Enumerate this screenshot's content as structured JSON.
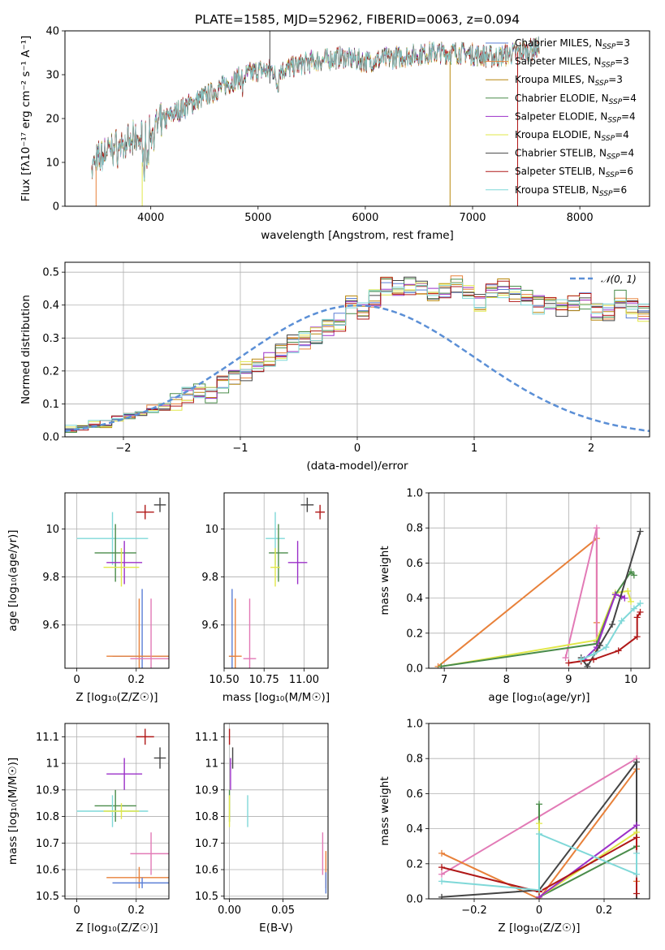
{
  "colors": {
    "chabrier_miles": "#5b7fd6",
    "salpeter_miles": "#e8813a",
    "kroupa_miles": "#b8860b",
    "chabrier_elodie": "#4a8c4a",
    "salpeter_elodie": "#9b30c8",
    "kroupa_elodie": "#e1e74a",
    "chabrier_stelib": "#444444",
    "salpeter_stelib": "#b01818",
    "kroupa_stelib": "#7fd8d8",
    "pink": "#e27ab6",
    "normal": "#5b8fd6"
  },
  "chart_data": [
    {
      "id": "spectrum",
      "type": "line",
      "title": "PLATE=1585, MJD=52962, FIBERID=0063, z=0.094",
      "xlabel": "wavelength [Angstrom, rest frame]",
      "ylabel": "Flux [fλ10⁻¹⁷ erg cm⁻² s⁻¹ A⁻¹]",
      "xlim": [
        3200,
        8650
      ],
      "ylim": [
        0,
        40
      ],
      "xticks": [
        4000,
        5000,
        6000,
        7000,
        8000
      ],
      "yticks": [
        0,
        10,
        20,
        30,
        40
      ],
      "legend_position": "top-right",
      "envelope": {
        "x": [
          3450,
          3600,
          3800,
          4000,
          4200,
          4500,
          4800,
          5000,
          5200,
          5500,
          5800,
          6000,
          6300,
          6600,
          6900,
          7200,
          7400,
          7600
        ],
        "y": [
          9,
          13,
          14,
          17,
          21,
          25,
          29,
          31,
          31,
          33,
          34,
          33,
          34,
          35,
          35,
          34,
          35,
          36
        ]
      },
      "legend": [
        "Chabrier MILES, N_SSP=3",
        "Salpeter MILES, N_SSP=3",
        "Kroupa MILES, N_SSP=3",
        "Chabrier ELODIE, N_SSP=4",
        "Salpeter ELODIE, N_SSP=4",
        "Kroupa ELODIE, N_SSP=4",
        "Chabrier STELIB, N_SSP=4",
        "Salpeter STELIB, N_SSP=6",
        "Kroupa STELIB, N_SSP=6"
      ],
      "legend_text": [
        [
          "Chabrier MILES, N",
          "SSP",
          "=3"
        ],
        [
          "Salpeter MILES, N",
          "SSP",
          "=3"
        ],
        [
          "Kroupa MILES, N",
          "SSP",
          "=3"
        ],
        [
          "Chabrier ELODIE, N",
          "SSP",
          "=4"
        ],
        [
          "Salpeter ELODIE, N",
          "SSP",
          "=4"
        ],
        [
          "Kroupa ELODIE, N",
          "SSP",
          "=4"
        ],
        [
          "Chabrier STELIB, N",
          "SSP",
          "=4"
        ],
        [
          "Salpeter STELIB, N",
          "SSP",
          "=6"
        ],
        [
          "Kroupa STELIB, N",
          "SSP",
          "=6"
        ]
      ],
      "series_colors": [
        "chabrier_miles",
        "salpeter_miles",
        "kroupa_miles",
        "chabrier_elodie",
        "salpeter_elodie",
        "kroupa_elodie",
        "chabrier_stelib",
        "salpeter_stelib",
        "kroupa_stelib"
      ],
      "vertical_lines": [
        {
          "x": 3490,
          "y0": 0,
          "y1": 9,
          "color": "salpeter_miles"
        },
        {
          "x": 3920,
          "y0": 0,
          "y1": 10,
          "color": "kroupa_elodie"
        },
        {
          "x": 5110,
          "y0": 28,
          "y1": 40,
          "color": "chabrier_stelib"
        },
        {
          "x": 6790,
          "y0": 0,
          "y1": 33,
          "color": "kroupa_miles"
        },
        {
          "x": 7420,
          "y0": 0,
          "y1": 35,
          "color": "salpeter_stelib"
        }
      ]
    },
    {
      "id": "residuals",
      "type": "histogram",
      "xlabel": "(data-model)/error",
      "ylabel": "Normed distribution",
      "xlim": [
        -2.5,
        2.5
      ],
      "ylim": [
        0,
        0.53
      ],
      "xticks": [
        -2,
        -1,
        0,
        1,
        2
      ],
      "yticks": [
        0.0,
        0.1,
        0.2,
        0.3,
        0.4,
        0.5
      ],
      "legend": "𝒩(0, 1)",
      "legend_position": "top-right",
      "bin_width": 0.1,
      "bin_start": -2.5,
      "base_profile": [
        0.025,
        0.03,
        0.04,
        0.04,
        0.055,
        0.06,
        0.065,
        0.085,
        0.09,
        0.11,
        0.13,
        0.14,
        0.13,
        0.155,
        0.175,
        0.2,
        0.225,
        0.24,
        0.26,
        0.28,
        0.29,
        0.31,
        0.33,
        0.35,
        0.4,
        0.38,
        0.42,
        0.46,
        0.45,
        0.46,
        0.45,
        0.43,
        0.44,
        0.46,
        0.45,
        0.41,
        0.44,
        0.45,
        0.43,
        0.42,
        0.4,
        0.4,
        0.39,
        0.4,
        0.41,
        0.38,
        0.38,
        0.42,
        0.39,
        0.38,
        0.36,
        0.39,
        0.37,
        0.36,
        0.33,
        0.3,
        0.31,
        0.29,
        0.26,
        0.26,
        0.22,
        0.2,
        0.2,
        0.19,
        0.16,
        0.14,
        0.15,
        0.13,
        0.1,
        0.1,
        0.08,
        0.08,
        0.07,
        0.06,
        0.05,
        0.04,
        0.04,
        0.035,
        0.03,
        0.03
      ],
      "normal_curve": {
        "mean": 0,
        "sigma": 1
      }
    },
    {
      "id": "age_vs_Z",
      "type": "errorbar",
      "xlabel": "Z [log₁₀(Z/Z☉)]",
      "ylabel": "age  [log₁₀(age/yr)]",
      "xlim": [
        -0.04,
        0.31
      ],
      "ylim": [
        9.42,
        10.15
      ],
      "xticks": [
        0.0,
        0.2
      ],
      "yticks": [
        9.6,
        9.8,
        10.0
      ],
      "points": [
        {
          "x": 0.28,
          "y": 10.1,
          "xerr": 0.02,
          "yerr": 0.03,
          "color": "chabrier_stelib"
        },
        {
          "x": 0.23,
          "y": 10.07,
          "xerr": 0.03,
          "yerr": 0.03,
          "color": "salpeter_stelib"
        },
        {
          "x": 0.12,
          "y": 9.96,
          "xerr": 0.12,
          "yerr": 0.11,
          "color": "kroupa_stelib"
        },
        {
          "x": 0.13,
          "y": 9.9,
          "xerr": 0.07,
          "yerr": 0.12,
          "color": "chabrier_elodie"
        },
        {
          "x": 0.16,
          "y": 9.86,
          "xerr": 0.06,
          "yerr": 0.09,
          "color": "salpeter_elodie"
        },
        {
          "x": 0.15,
          "y": 9.84,
          "xerr": 0.06,
          "yerr": 0.08,
          "color": "kroupa_elodie"
        },
        {
          "x": 0.22,
          "y": 9.47,
          "xerr": 0.1,
          "yerr": 0.28,
          "color": "chabrier_miles"
        },
        {
          "x": 0.21,
          "y": 9.47,
          "xerr": 0.11,
          "yerr": 0.24,
          "color": "salpeter_miles"
        },
        {
          "x": 0.25,
          "y": 9.46,
          "xerr": 0.07,
          "yerr": 0.25,
          "color": "pink"
        }
      ]
    },
    {
      "id": "age_vs_mass",
      "type": "errorbar",
      "xlabel": "mass [log₁₀(M/M☉)]",
      "ylabel": "",
      "xlim": [
        10.5,
        11.15
      ],
      "ylim": [
        9.42,
        10.15
      ],
      "xticks": [
        10.5,
        10.75,
        11.0
      ],
      "xticklabels": [
        "10.50",
        "10.75",
        "11.00"
      ],
      "yticks": [
        9.6,
        9.8,
        10.0
      ],
      "points": [
        {
          "x": 11.02,
          "y": 10.1,
          "xerr": 0.04,
          "yerr": 0.03,
          "color": "chabrier_stelib"
        },
        {
          "x": 11.1,
          "y": 10.07,
          "xerr": 0.03,
          "yerr": 0.03,
          "color": "salpeter_stelib"
        },
        {
          "x": 10.82,
          "y": 9.96,
          "xerr": 0.06,
          "yerr": 0.11,
          "color": "kroupa_stelib"
        },
        {
          "x": 10.84,
          "y": 9.9,
          "xerr": 0.06,
          "yerr": 0.12,
          "color": "chabrier_elodie"
        },
        {
          "x": 10.96,
          "y": 9.86,
          "xerr": 0.06,
          "yerr": 0.09,
          "color": "salpeter_elodie"
        },
        {
          "x": 10.82,
          "y": 9.84,
          "xerr": 0.03,
          "yerr": 0.08,
          "color": "kroupa_elodie"
        },
        {
          "x": 10.55,
          "y": 9.47,
          "xerr": 0.02,
          "yerr": 0.28,
          "color": "chabrier_miles"
        },
        {
          "x": 10.57,
          "y": 9.47,
          "xerr": 0.04,
          "yerr": 0.24,
          "color": "salpeter_miles"
        },
        {
          "x": 10.66,
          "y": 9.46,
          "xerr": 0.04,
          "yerr": 0.25,
          "color": "pink"
        }
      ]
    },
    {
      "id": "weight_vs_age",
      "type": "line",
      "xlabel": "age  [log₁₀(age/yr)]",
      "ylabel": "mass weight",
      "xlim": [
        6.75,
        10.3
      ],
      "ylim": [
        0,
        1
      ],
      "xticks": [
        7,
        8,
        9,
        10
      ],
      "yticks": [
        0.0,
        0.2,
        0.4,
        0.6,
        0.8,
        1.0
      ],
      "series": [
        {
          "color": "salpeter_miles",
          "x": [
            6.9,
            9.45,
            9.45,
            9.45
          ],
          "y": [
            0.01,
            0.74,
            0.26,
            0.1
          ]
        },
        {
          "color": "pink",
          "x": [
            8.95,
            9.45,
            9.45
          ],
          "y": [
            0.06,
            0.8,
            0.15
          ]
        },
        {
          "color": "kroupa_elodie",
          "x": [
            6.95,
            9.45,
            9.75,
            9.95,
            10.0
          ],
          "y": [
            0.01,
            0.16,
            0.43,
            0.44,
            0.38
          ]
        },
        {
          "color": "chabrier_elodie",
          "x": [
            6.95,
            9.45,
            9.75,
            10.0,
            10.05
          ],
          "y": [
            0.01,
            0.14,
            0.42,
            0.55,
            0.53
          ]
        },
        {
          "color": "salpeter_elodie",
          "x": [
            9.25,
            9.45,
            9.75,
            9.85,
            9.9
          ],
          "y": [
            0.05,
            0.12,
            0.42,
            0.41,
            0.4
          ]
        },
        {
          "color": "chabrier_stelib",
          "x": [
            9.2,
            9.3,
            9.5,
            9.7,
            10.15
          ],
          "y": [
            0.06,
            0.01,
            0.13,
            0.25,
            0.78
          ]
        },
        {
          "color": "salpeter_stelib",
          "x": [
            9.0,
            9.2,
            9.4,
            9.8,
            10.1,
            10.1,
            10.15
          ],
          "y": [
            0.03,
            0.04,
            0.05,
            0.1,
            0.18,
            0.29,
            0.32
          ]
        },
        {
          "color": "kroupa_stelib",
          "x": [
            9.2,
            9.4,
            9.6,
            9.85,
            10.05,
            10.15
          ],
          "y": [
            0.05,
            0.08,
            0.12,
            0.27,
            0.34,
            0.37
          ]
        }
      ]
    },
    {
      "id": "mass_vs_Z",
      "type": "errorbar",
      "xlabel": "Z [log₁₀(Z/Z☉)]",
      "ylabel": "mass [log₁₀(M/M☉)]",
      "xlim": [
        -0.04,
        0.31
      ],
      "ylim": [
        10.49,
        11.15
      ],
      "xticks": [
        0.0,
        0.2
      ],
      "yticks": [
        10.5,
        10.6,
        10.7,
        10.8,
        10.9,
        11.0,
        11.1
      ],
      "points": [
        {
          "x": 0.23,
          "y": 11.1,
          "xerr": 0.03,
          "yerr": 0.03,
          "color": "salpeter_stelib"
        },
        {
          "x": 0.28,
          "y": 11.02,
          "xerr": 0.02,
          "yerr": 0.04,
          "color": "chabrier_stelib"
        },
        {
          "x": 0.16,
          "y": 10.96,
          "xerr": 0.06,
          "yerr": 0.06,
          "color": "salpeter_elodie"
        },
        {
          "x": 0.13,
          "y": 10.84,
          "xerr": 0.07,
          "yerr": 0.06,
          "color": "chabrier_elodie"
        },
        {
          "x": 0.12,
          "y": 10.82,
          "xerr": 0.12,
          "yerr": 0.06,
          "color": "kroupa_stelib"
        },
        {
          "x": 0.15,
          "y": 10.82,
          "xerr": 0.06,
          "yerr": 0.03,
          "color": "kroupa_elodie"
        },
        {
          "x": 0.25,
          "y": 10.66,
          "xerr": 0.07,
          "yerr": 0.08,
          "color": "pink"
        },
        {
          "x": 0.21,
          "y": 10.57,
          "xerr": 0.11,
          "yerr": 0.04,
          "color": "salpeter_miles"
        },
        {
          "x": 0.22,
          "y": 10.55,
          "xerr": 0.1,
          "yerr": 0.02,
          "color": "chabrier_miles"
        }
      ]
    },
    {
      "id": "mass_vs_EBV",
      "type": "errorbar",
      "xlabel": "E(B-V)",
      "ylabel": "",
      "xlim": [
        -0.005,
        0.092
      ],
      "ylim": [
        10.49,
        11.15
      ],
      "xticks": [
        0.0,
        0.05
      ],
      "xticklabels": [
        "0.00",
        "0.05"
      ],
      "yticks": [
        10.5,
        10.6,
        10.7,
        10.8,
        10.9,
        11.0,
        11.1
      ],
      "points": [
        {
          "x": 0.0,
          "y": 11.1,
          "xerr": 0.0,
          "yerr": 0.03,
          "color": "salpeter_stelib"
        },
        {
          "x": 0.003,
          "y": 11.02,
          "xerr": 0.0,
          "yerr": 0.04,
          "color": "chabrier_stelib"
        },
        {
          "x": 0.001,
          "y": 10.96,
          "xerr": 0.0,
          "yerr": 0.06,
          "color": "salpeter_elodie"
        },
        {
          "x": 0.0,
          "y": 10.84,
          "xerr": 0.0,
          "yerr": 0.06,
          "color": "chabrier_elodie"
        },
        {
          "x": 0.0,
          "y": 10.82,
          "xerr": 0.0,
          "yerr": 0.06,
          "color": "kroupa_elodie"
        },
        {
          "x": 0.017,
          "y": 10.82,
          "xerr": 0.0,
          "yerr": 0.06,
          "color": "kroupa_stelib"
        },
        {
          "x": 0.087,
          "y": 10.66,
          "xerr": 0.0,
          "yerr": 0.08,
          "color": "pink"
        },
        {
          "x": 0.09,
          "y": 10.6,
          "xerr": 0.0,
          "yerr": 0.07,
          "color": "salpeter_miles"
        },
        {
          "x": 0.09,
          "y": 10.55,
          "xerr": 0.0,
          "yerr": 0.04,
          "color": "chabrier_miles"
        }
      ]
    },
    {
      "id": "weight_vs_Z",
      "type": "line",
      "xlabel": "Z [log₁₀(Z/Z☉)]",
      "ylabel": "mass weight",
      "xlim": [
        -0.34,
        0.34
      ],
      "ylim": [
        0,
        1
      ],
      "xticks": [
        -0.2,
        0.0,
        0.2
      ],
      "yticks": [
        0.0,
        0.2,
        0.4,
        0.6,
        0.8,
        1.0
      ],
      "series": [
        {
          "color": "pink",
          "x": [
            -0.3,
            0.3
          ],
          "y": [
            0.14,
            0.8
          ]
        },
        {
          "color": "salpeter_miles",
          "x": [
            -0.3,
            0.0,
            0.3,
            0.3
          ],
          "y": [
            0.26,
            0.0,
            0.74,
            0.1
          ]
        },
        {
          "color": "chabrier_stelib",
          "x": [
            -0.3,
            0.0,
            0.3,
            0.3
          ],
          "y": [
            0.01,
            0.05,
            0.78,
            0.0
          ]
        },
        {
          "color": "chabrier_elodie",
          "x": [
            0.0,
            0.0,
            0.3
          ],
          "y": [
            0.54,
            0.01,
            0.3
          ]
        },
        {
          "color": "kroupa_elodie",
          "x": [
            0.0,
            0.0,
            0.3
          ],
          "y": [
            0.43,
            0.01,
            0.38
          ]
        },
        {
          "color": "salpeter_elodie",
          "x": [
            0.0,
            0.3
          ],
          "y": [
            0.01,
            0.42
          ]
        },
        {
          "color": "salpeter_stelib",
          "x": [
            -0.3,
            0.0,
            0.3,
            0.3
          ],
          "y": [
            0.18,
            0.04,
            0.35,
            0.03
          ]
        },
        {
          "color": "kroupa_stelib",
          "x": [
            -0.3,
            0.0,
            0.0,
            0.3,
            0.3
          ],
          "y": [
            0.1,
            0.05,
            0.37,
            0.14,
            0.26
          ]
        }
      ]
    }
  ]
}
